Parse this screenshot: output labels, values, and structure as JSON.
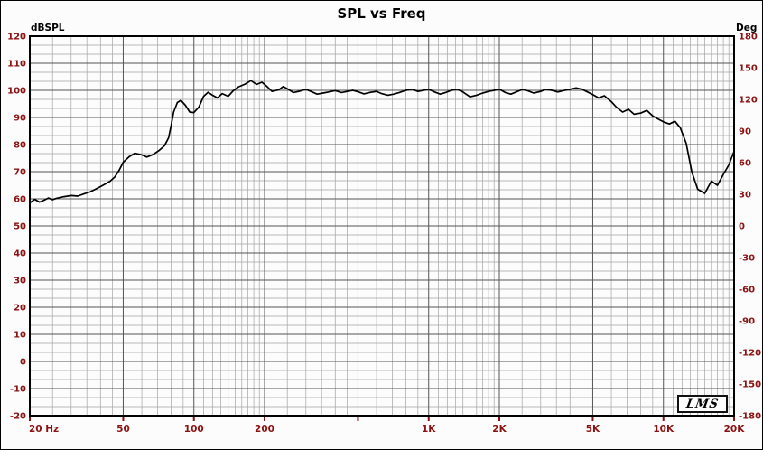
{
  "branding": {
    "logo_text": "LMS"
  },
  "chart_data": {
    "type": "line",
    "title": "SPL vs Freq",
    "x_scale": "log",
    "xlim": [
      20,
      20000
    ],
    "left_axis": {
      "unit": "dBSPL",
      "min": -20,
      "max": 120,
      "tick_step": 10,
      "ticks": [
        120,
        110,
        100,
        90,
        80,
        70,
        60,
        50,
        40,
        30,
        20,
        10,
        0,
        -10,
        -20
      ]
    },
    "right_axis": {
      "unit": "Deg",
      "min": -180,
      "max": 180,
      "tick_step": 30,
      "ticks": [
        180,
        150,
        120,
        90,
        60,
        30,
        0,
        -30,
        -60,
        -90,
        -120,
        -150,
        -180
      ]
    },
    "x_ticks": [
      {
        "value": 20,
        "label": "20 Hz"
      },
      {
        "value": 50,
        "label": "50"
      },
      {
        "value": 100,
        "label": "100"
      },
      {
        "value": 200,
        "label": "200"
      },
      {
        "value": 1000,
        "label": "1K"
      },
      {
        "value": 2000,
        "label": "2K"
      },
      {
        "value": 5000,
        "label": "5K"
      },
      {
        "value": 10000,
        "label": "10K"
      },
      {
        "value": 20000,
        "label": "20K"
      }
    ],
    "grid": {
      "y_minor_divisions": 3,
      "x_minor_multipliers": [
        1.1,
        1.2,
        1.3,
        1.4,
        1.5,
        1.6,
        1.7,
        1.8,
        1.9,
        2.5,
        3,
        3.5,
        4,
        4.5,
        6,
        7,
        8,
        9
      ],
      "x_major": [
        20,
        50,
        100,
        200,
        500,
        1000,
        2000,
        5000,
        10000,
        20000
      ]
    },
    "colors": {
      "tick_label": "#8b1212",
      "grid_minor": "#a3a3a3",
      "grid_major": "#555555",
      "frame": "#000000",
      "background": "#fcfcfc"
    },
    "series": [
      {
        "name": "SPL",
        "color": "#000000",
        "x": [
          20,
          21,
          22,
          23,
          24,
          25,
          26,
          28,
          30,
          32,
          34,
          36,
          38,
          40,
          42,
          44,
          46,
          48,
          50,
          53,
          56,
          60,
          63,
          67,
          71,
          75,
          78,
          80,
          82,
          85,
          88,
          92,
          96,
          100,
          105,
          110,
          115,
          120,
          126,
          132,
          140,
          147,
          155,
          165,
          175,
          185,
          195,
          205,
          215,
          230,
          240,
          250,
          265,
          280,
          300,
          315,
          335,
          355,
          375,
          400,
          425,
          450,
          475,
          500,
          530,
          560,
          600,
          630,
          670,
          710,
          750,
          800,
          850,
          900,
          950,
          1000,
          1060,
          1120,
          1180,
          1250,
          1320,
          1400,
          1500,
          1600,
          1700,
          1800,
          1900,
          2000,
          2120,
          2240,
          2360,
          2500,
          2650,
          2800,
          3000,
          3150,
          3350,
          3550,
          3750,
          4000,
          4250,
          4500,
          4750,
          5000,
          5300,
          5600,
          6000,
          6300,
          6700,
          7100,
          7500,
          8000,
          8500,
          9000,
          9500,
          10000,
          10600,
          11200,
          11800,
          12500,
          13200,
          14000,
          15000,
          16000,
          17000,
          18000,
          19000,
          20000
        ],
        "y": [
          58.5,
          59.8,
          58.8,
          59.5,
          60.3,
          59.7,
          60.2,
          60.8,
          61.2,
          61.0,
          61.8,
          62.5,
          63.5,
          64.5,
          65.5,
          66.5,
          68.0,
          70.5,
          73.5,
          75.5,
          76.8,
          76.2,
          75.4,
          76.3,
          77.8,
          79.6,
          82.5,
          87.0,
          92.0,
          95.5,
          96.3,
          94.5,
          92.0,
          91.8,
          93.8,
          97.8,
          99.3,
          98.2,
          97.2,
          98.8,
          97.8,
          99.8,
          101.3,
          102.3,
          103.6,
          102.2,
          103.0,
          101.4,
          99.6,
          100.2,
          101.4,
          100.6,
          99.2,
          99.6,
          100.4,
          99.6,
          98.6,
          99.0,
          99.4,
          99.9,
          99.2,
          99.6,
          100.0,
          99.5,
          98.7,
          99.2,
          99.6,
          98.8,
          98.2,
          98.6,
          99.2,
          100.0,
          100.4,
          99.6,
          100.0,
          100.4,
          99.4,
          98.6,
          99.2,
          100.0,
          100.4,
          99.4,
          97.6,
          98.2,
          99.0,
          99.6,
          100.0,
          100.4,
          99.2,
          98.6,
          99.4,
          100.3,
          99.8,
          99.0,
          99.6,
          100.4,
          100.0,
          99.4,
          99.9,
          100.4,
          100.9,
          100.4,
          99.4,
          98.4,
          97.2,
          98.0,
          95.8,
          93.8,
          92.0,
          93.0,
          91.2,
          91.6,
          92.6,
          90.6,
          89.4,
          88.4,
          87.6,
          88.6,
          86.2,
          80.5,
          70.0,
          63.5,
          62.0,
          66.5,
          65.0,
          69.0,
          72.5,
          77.5
        ]
      }
    ]
  }
}
